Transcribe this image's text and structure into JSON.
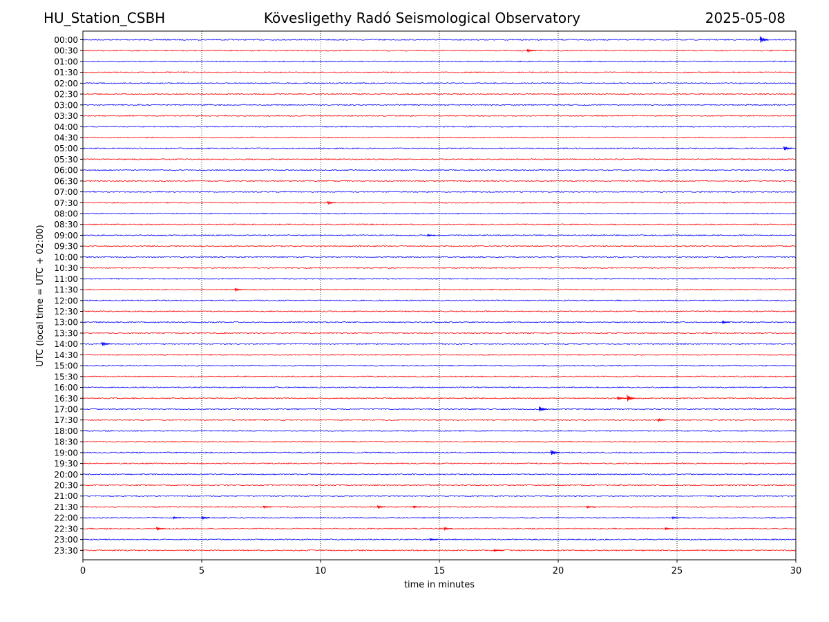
{
  "header": {
    "station": "HU_Station_CSBH",
    "observatory": "Kövesligethy Radó Seismological Observatory",
    "date": "2025-05-08"
  },
  "chart_data": {
    "type": "line",
    "title": "Kövesligethy Radó Seismological Observatory",
    "xlabel": "time in minutes",
    "ylabel": "UTC (local time = UTC + 02:00)",
    "xlim": [
      0,
      30
    ],
    "x_ticks": [
      0,
      5,
      10,
      15,
      20,
      25,
      30
    ],
    "grid": "vertical dotted",
    "colors": {
      "even_rows": "#0000ff",
      "odd_rows": "#ff0000"
    },
    "rows": [
      "00:00",
      "00:30",
      "01:00",
      "01:30",
      "02:00",
      "02:30",
      "03:00",
      "03:30",
      "04:00",
      "04:30",
      "05:00",
      "05:30",
      "06:00",
      "06:30",
      "07:00",
      "07:30",
      "08:00",
      "08:30",
      "09:00",
      "09:30",
      "10:00",
      "10:30",
      "11:00",
      "11:30",
      "12:00",
      "12:30",
      "13:00",
      "13:30",
      "14:00",
      "14:30",
      "15:00",
      "15:30",
      "16:00",
      "16:30",
      "17:00",
      "17:30",
      "18:00",
      "18:30",
      "19:00",
      "19:30",
      "20:00",
      "20:30",
      "21:00",
      "21:30",
      "22:00",
      "22:30",
      "23:00",
      "23:30"
    ],
    "events": [
      {
        "row": "00:00",
        "minute": 28.5,
        "amplitude": 5
      },
      {
        "row": "00:30",
        "minute": 18.7,
        "amplitude": 2
      },
      {
        "row": "05:00",
        "minute": 29.5,
        "amplitude": 3
      },
      {
        "row": "07:30",
        "minute": 10.3,
        "amplitude": 2
      },
      {
        "row": "09:00",
        "minute": 14.5,
        "amplitude": 1.5
      },
      {
        "row": "11:30",
        "minute": 6.4,
        "amplitude": 2
      },
      {
        "row": "13:00",
        "minute": 26.9,
        "amplitude": 2
      },
      {
        "row": "14:00",
        "minute": 0.8,
        "amplitude": 3
      },
      {
        "row": "16:30",
        "minute": 22.5,
        "amplitude": 2
      },
      {
        "row": "16:30",
        "minute": 22.9,
        "amplitude": 5
      },
      {
        "row": "17:00",
        "minute": 19.2,
        "amplitude": 4
      },
      {
        "row": "17:30",
        "minute": 24.2,
        "amplitude": 2
      },
      {
        "row": "19:00",
        "minute": 19.7,
        "amplitude": 4
      },
      {
        "row": "21:30",
        "minute": 7.6,
        "amplitude": 1.5
      },
      {
        "row": "21:30",
        "minute": 12.4,
        "amplitude": 2
      },
      {
        "row": "21:30",
        "minute": 13.9,
        "amplitude": 1.5
      },
      {
        "row": "21:30",
        "minute": 21.2,
        "amplitude": 1.5
      },
      {
        "row": "22:00",
        "minute": 3.8,
        "amplitude": 1.5
      },
      {
        "row": "22:00",
        "minute": 5.0,
        "amplitude": 2
      },
      {
        "row": "22:00",
        "minute": 24.8,
        "amplitude": 1.5
      },
      {
        "row": "22:30",
        "minute": 3.1,
        "amplitude": 2
      },
      {
        "row": "22:30",
        "minute": 15.2,
        "amplitude": 2
      },
      {
        "row": "22:30",
        "minute": 24.5,
        "amplitude": 1.5
      },
      {
        "row": "23:00",
        "minute": 14.6,
        "amplitude": 1.5
      },
      {
        "row": "23:30",
        "minute": 17.3,
        "amplitude": 1.5
      }
    ]
  }
}
